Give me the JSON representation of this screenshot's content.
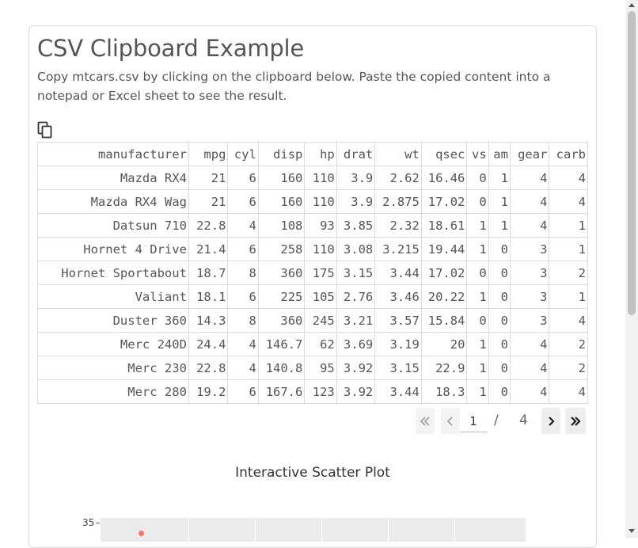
{
  "header": {
    "title": "CSV Clipboard Example",
    "description": "Copy mtcars.csv by clicking on the clipboard below. Paste the copied content into a notepad or Excel sheet to see the result."
  },
  "clipboard": {
    "icon": "clipboard-copy-icon"
  },
  "table": {
    "columns": [
      "manufacturer",
      "mpg",
      "cyl",
      "disp",
      "hp",
      "drat",
      "wt",
      "qsec",
      "vs",
      "am",
      "gear",
      "carb"
    ],
    "rows": [
      [
        "Mazda RX4",
        "21",
        "6",
        "160",
        "110",
        "3.9",
        "2.62",
        "16.46",
        "0",
        "1",
        "4",
        "4"
      ],
      [
        "Mazda RX4 Wag",
        "21",
        "6",
        "160",
        "110",
        "3.9",
        "2.875",
        "17.02",
        "0",
        "1",
        "4",
        "4"
      ],
      [
        "Datsun 710",
        "22.8",
        "4",
        "108",
        "93",
        "3.85",
        "2.32",
        "18.61",
        "1",
        "1",
        "4",
        "1"
      ],
      [
        "Hornet 4 Drive",
        "21.4",
        "6",
        "258",
        "110",
        "3.08",
        "3.215",
        "19.44",
        "1",
        "0",
        "3",
        "1"
      ],
      [
        "Hornet Sportabout",
        "18.7",
        "8",
        "360",
        "175",
        "3.15",
        "3.44",
        "17.02",
        "0",
        "0",
        "3",
        "2"
      ],
      [
        "Valiant",
        "18.1",
        "6",
        "225",
        "105",
        "2.76",
        "3.46",
        "20.22",
        "1",
        "0",
        "3",
        "1"
      ],
      [
        "Duster 360",
        "14.3",
        "8",
        "360",
        "245",
        "3.21",
        "3.57",
        "15.84",
        "0",
        "0",
        "3",
        "4"
      ],
      [
        "Merc 240D",
        "24.4",
        "4",
        "146.7",
        "62",
        "3.69",
        "3.19",
        "20",
        "1",
        "0",
        "4",
        "2"
      ],
      [
        "Merc 230",
        "22.8",
        "4",
        "140.8",
        "95",
        "3.92",
        "3.15",
        "22.9",
        "1",
        "0",
        "4",
        "2"
      ],
      [
        "Merc 280",
        "19.2",
        "6",
        "167.6",
        "123",
        "3.92",
        "3.44",
        "18.3",
        "1",
        "0",
        "4",
        "4"
      ]
    ]
  },
  "pagination": {
    "current_page": "1",
    "separator": "/",
    "total_pages": "4",
    "first_icon": "double-chevron-left-icon",
    "prev_icon": "chevron-left-icon",
    "next_icon": "chevron-right-icon",
    "last_icon": "double-chevron-right-icon"
  },
  "plot": {
    "title": "Interactive Scatter Plot",
    "y_tick": "35",
    "point_color": "#f8766d",
    "panel_color": "#ebebeb"
  }
}
